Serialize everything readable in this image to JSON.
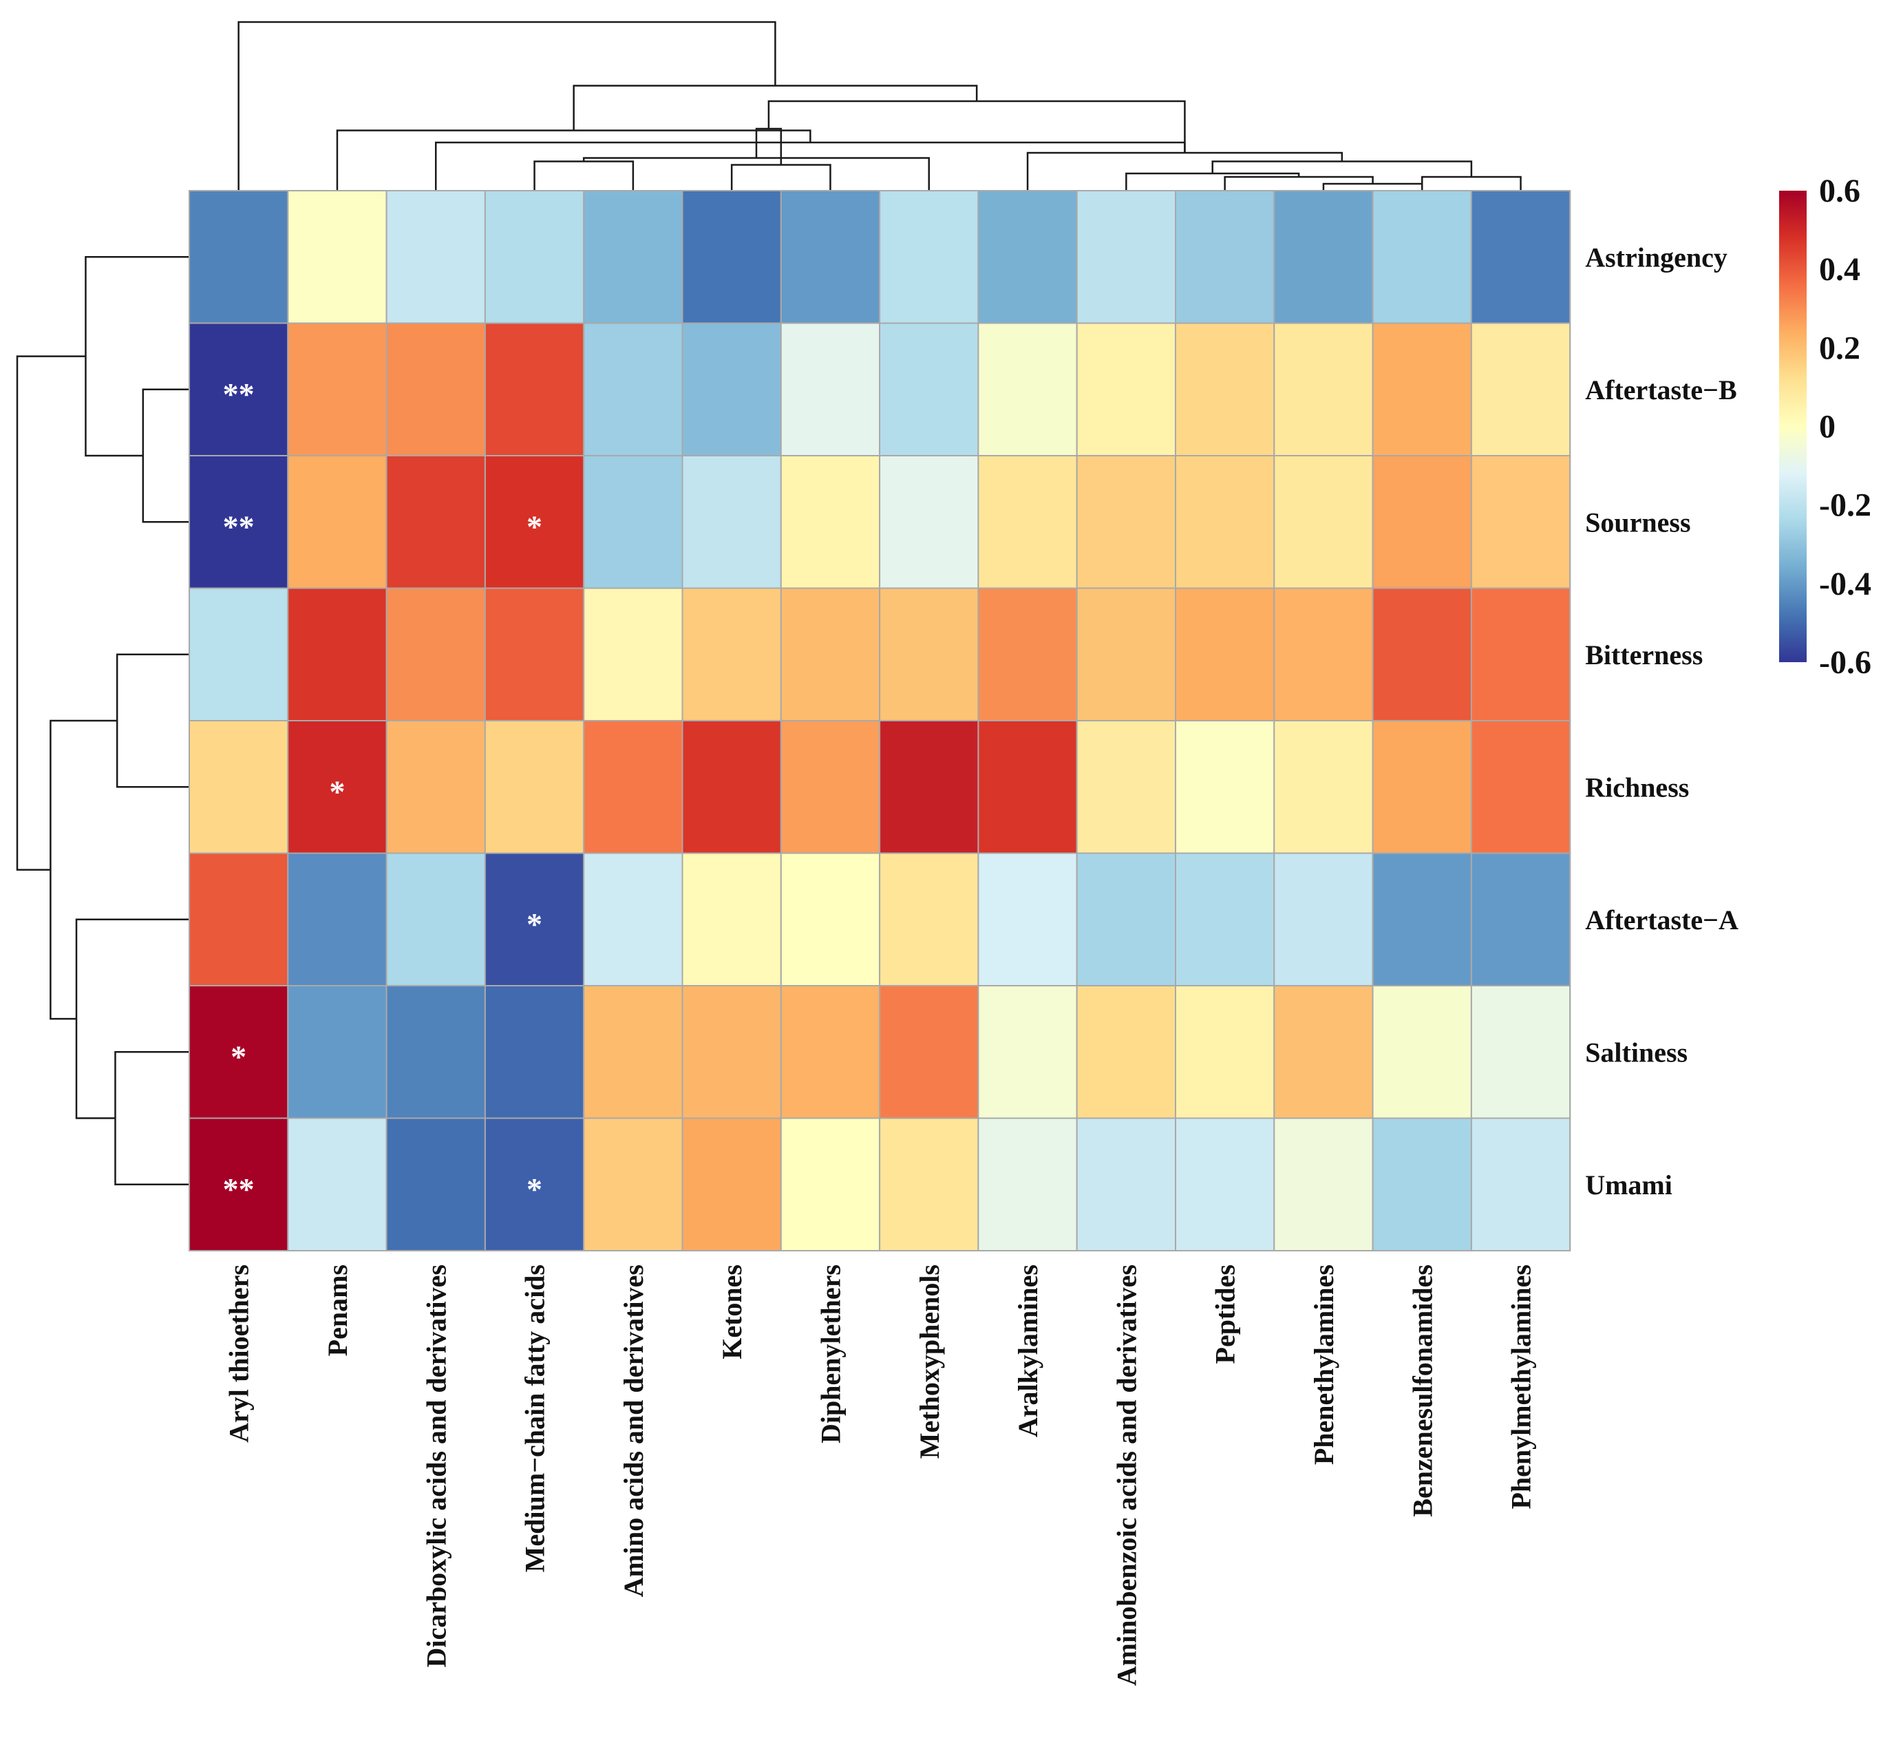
{
  "chart_data": {
    "type": "heatmap",
    "title": "",
    "rows": [
      "Astringency",
      "Aftertaste−B",
      "Sourness",
      "Bitterness",
      "Richness",
      "Aftertaste−A",
      "Saltiness",
      "Umami"
    ],
    "columns": [
      "Aryl thioethers",
      "Penams",
      "Dicarboxylic acids and derivatives",
      "Medium−chain fatty acids",
      "Amino acids and derivatives",
      "Ketones",
      "Diphenylethers",
      "Methoxyphenols",
      "Aralkylamines",
      "Aminobenzoic acids and derivatives",
      "Peptides",
      "Phenethylamines",
      "Benzenesulfonamides",
      "Phenylmethylamines"
    ],
    "values": [
      [
        -0.45,
        -0.01,
        -0.18,
        -0.22,
        -0.33,
        -0.48,
        -0.4,
        -0.21,
        -0.35,
        -0.2,
        -0.28,
        -0.38,
        -0.26,
        -0.46
      ],
      [
        -0.6,
        0.28,
        0.3,
        0.43,
        -0.27,
        -0.32,
        -0.1,
        -0.22,
        -0.03,
        0.05,
        0.14,
        0.09,
        0.24,
        0.08
      ],
      [
        -0.6,
        0.24,
        0.45,
        0.48,
        -0.27,
        -0.19,
        0.04,
        -0.1,
        0.1,
        0.16,
        0.15,
        0.09,
        0.26,
        0.18
      ],
      [
        -0.21,
        0.47,
        0.3,
        0.39,
        0.03,
        0.17,
        0.21,
        0.19,
        0.3,
        0.19,
        0.24,
        0.23,
        0.4,
        0.35
      ],
      [
        0.14,
        0.5,
        0.22,
        0.15,
        0.34,
        0.47,
        0.27,
        0.52,
        0.47,
        0.08,
        -0.01,
        0.06,
        0.25,
        0.35
      ],
      [
        0.4,
        -0.43,
        -0.24,
        -0.55,
        -0.16,
        0.02,
        0.0,
        0.1,
        -0.14,
        -0.25,
        -0.23,
        -0.18,
        -0.4,
        -0.4
      ],
      [
        0.59,
        -0.4,
        -0.45,
        -0.5,
        0.21,
        0.22,
        0.23,
        0.33,
        -0.04,
        0.13,
        0.05,
        0.2,
        -0.03,
        -0.08
      ],
      [
        0.6,
        -0.17,
        -0.49,
        -0.52,
        0.17,
        0.25,
        0.0,
        0.1,
        -0.09,
        -0.17,
        -0.16,
        -0.06,
        -0.25,
        -0.17
      ]
    ],
    "significance": [
      [
        "",
        "",
        "",
        "",
        "",
        "",
        "",
        "",
        "",
        "",
        "",
        "",
        "",
        ""
      ],
      [
        "**",
        "",
        "",
        "",
        "",
        "",
        "",
        "",
        "",
        "",
        "",
        "",
        "",
        ""
      ],
      [
        "**",
        "",
        "",
        "*",
        "",
        "",
        "",
        "",
        "",
        "",
        "",
        "",
        "",
        ""
      ],
      [
        "",
        "",
        "",
        "",
        "",
        "",
        "",
        "",
        "",
        "",
        "",
        "",
        "",
        ""
      ],
      [
        "",
        "*",
        "",
        "",
        "",
        "",
        "",
        "",
        "",
        "",
        "",
        "",
        "",
        ""
      ],
      [
        "",
        "",
        "",
        "*",
        "",
        "",
        "",
        "",
        "",
        "",
        "",
        "",
        "",
        ""
      ],
      [
        "*",
        "",
        "",
        "",
        "",
        "",
        "",
        "",
        "",
        "",
        "",
        "",
        "",
        ""
      ],
      [
        "**",
        "",
        "",
        "*",
        "",
        "",
        "",
        "",
        "",
        "",
        "",
        "",
        "",
        ""
      ]
    ],
    "colorbar": {
      "range": [
        -0.6,
        0.6
      ],
      "ticks": [
        0.6,
        0.4,
        0.2,
        0,
        -0.2,
        -0.4,
        -0.6
      ],
      "tick_labels": [
        "0.6",
        "0.4",
        "0.2",
        "0",
        "-0.2",
        "-0.4",
        "-0.6"
      ],
      "colors": [
        "#313695",
        "#4575b4",
        "#74add1",
        "#abd9e9",
        "#e0f3f8",
        "#ffffbf",
        "#fee090",
        "#fdae61",
        "#f46d43",
        "#d73027",
        "#a50026"
      ]
    },
    "column_dendrogram": {
      "merges": [
        [
          -12,
          -13,
          0.04
        ],
        [
          -11,
          1,
          0.08
        ],
        [
          -13,
          -14,
          0.08
        ],
        [
          -10,
          2,
          0.1
        ],
        [
          3,
          4,
          0.17
        ],
        [
          -9,
          5,
          0.22
        ],
        [
          -4,
          -5,
          0.17
        ],
        [
          -6,
          -7,
          0.15
        ],
        [
          -8,
          7,
          0.19
        ],
        [
          -3,
          6,
          0.28
        ],
        [
          -2,
          10,
          0.35
        ],
        [
          8,
          9,
          0.36
        ],
        [
          6,
          12,
          0.52
        ],
        [
          11,
          13,
          0.61
        ],
        [
          -1,
          14,
          0.98
        ]
      ]
    },
    "row_dendrogram": {
      "merges": [
        [
          -2,
          -3,
          0.25
        ],
        [
          -1,
          1,
          0.56
        ],
        [
          -4,
          -5,
          0.39
        ],
        [
          -7,
          -8,
          0.4
        ],
        [
          -6,
          4,
          0.61
        ],
        [
          3,
          5,
          0.75
        ],
        [
          2,
          6,
          0.93
        ]
      ]
    },
    "grid": true,
    "legend": "right"
  }
}
